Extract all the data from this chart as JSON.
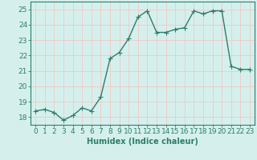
{
  "x": [
    0,
    1,
    2,
    3,
    4,
    5,
    6,
    7,
    8,
    9,
    10,
    11,
    12,
    13,
    14,
    15,
    16,
    17,
    18,
    19,
    20,
    21,
    22,
    23
  ],
  "y": [
    18.4,
    18.5,
    18.3,
    17.8,
    18.1,
    18.6,
    18.4,
    19.3,
    21.8,
    22.2,
    23.1,
    24.5,
    24.9,
    23.5,
    23.5,
    23.7,
    23.8,
    24.9,
    24.7,
    24.9,
    24.9,
    21.3,
    21.1,
    21.1
  ],
  "line_color": "#2d7d6d",
  "marker_color": "#2d7d6d",
  "bg_color": "#d5f0ec",
  "grid_color": "#f0c8c8",
  "xlabel": "Humidex (Indice chaleur)",
  "ylim": [
    17.5,
    25.5
  ],
  "xlim": [
    -0.5,
    23.5
  ],
  "yticks": [
    18,
    19,
    20,
    21,
    22,
    23,
    24,
    25
  ],
  "xticks": [
    0,
    1,
    2,
    3,
    4,
    5,
    6,
    7,
    8,
    9,
    10,
    11,
    12,
    13,
    14,
    15,
    16,
    17,
    18,
    19,
    20,
    21,
    22,
    23
  ],
  "xlabel_color": "#2d7d6d",
  "tick_color": "#2d7d6d",
  "font_size": 6.5,
  "marker_size": 2.0,
  "line_width": 1.0
}
